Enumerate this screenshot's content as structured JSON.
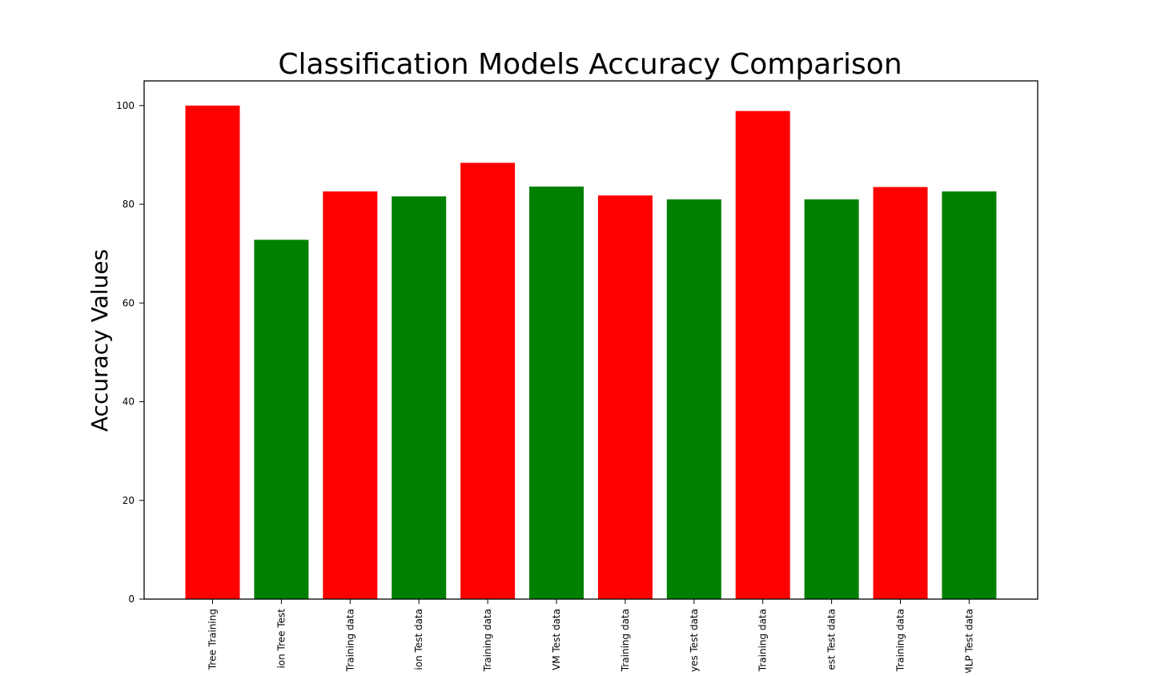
{
  "chart_data": {
    "type": "bar",
    "title": "Classification Models Accuracy Comparison",
    "xlabel": "",
    "ylabel": "Accuracy Values",
    "ylim": [
      0,
      105
    ],
    "yticks": [
      0,
      20,
      40,
      60,
      80,
      100
    ],
    "grid": false,
    "legend": "none",
    "categories": [
      "Tree Training",
      "ion Tree Test",
      "Training data",
      "ion Test data",
      "Training data",
      "VM Test data",
      "Training data",
      "yes Test data",
      "Training data",
      "est Test data",
      "Training data",
      "MLP Test data"
    ],
    "values": [
      100,
      72.8,
      82.6,
      81.6,
      88.4,
      83.6,
      81.8,
      81.0,
      98.9,
      81.0,
      83.5,
      82.6
    ],
    "colors": [
      "#ff0000",
      "#008000",
      "#ff0000",
      "#008000",
      "#ff0000",
      "#008000",
      "#ff0000",
      "#008000",
      "#ff0000",
      "#008000",
      "#ff0000",
      "#008000"
    ]
  }
}
